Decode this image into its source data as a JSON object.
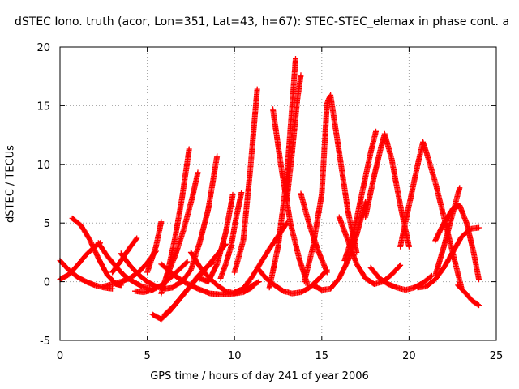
{
  "chart_data": {
    "type": "scatter",
    "title": "dSTEC Iono. truth (acor, Lon=351, Lat=43, h=67): STEC-STEC_elemax in phase cont. a",
    "xlabel": "GPS time / hours of day 241 of year 2006",
    "ylabel": "dSTEC  / TECUs",
    "xlim": [
      0,
      25
    ],
    "ylim": [
      -5,
      20
    ],
    "xticks": [
      "0",
      "5",
      "10",
      "15",
      "20",
      "25"
    ],
    "yticks": [
      "-5",
      "0",
      "5",
      "10",
      "15",
      "20"
    ],
    "grid": true,
    "marker": "+",
    "color": "#ff0000",
    "series": [
      {
        "x": [
          0.0,
          0.5,
          1.0,
          1.5,
          2.0,
          2.5,
          3.0
        ],
        "y": [
          1.8,
          1.0,
          0.4,
          0.0,
          -0.3,
          -0.5,
          -0.6
        ]
      },
      {
        "x": [
          0.0,
          0.5,
          1.0,
          1.5,
          2.0,
          2.3
        ],
        "y": [
          0.2,
          0.6,
          1.4,
          2.3,
          3.0,
          3.3
        ]
      },
      {
        "x": [
          0.7,
          1.2,
          1.7,
          2.2,
          2.7,
          3.2,
          3.5
        ],
        "y": [
          5.4,
          4.8,
          3.6,
          2.0,
          0.6,
          -0.2,
          -0.3
        ]
      },
      {
        "x": [
          2.2,
          2.7,
          3.2,
          3.7,
          4.2,
          4.7,
          5.2
        ],
        "y": [
          3.3,
          2.2,
          1.3,
          0.5,
          0.0,
          -0.4,
          -0.6
        ]
      },
      {
        "x": [
          2.5,
          3.0,
          3.5,
          4.0,
          4.5,
          5.0,
          5.5
        ],
        "y": [
          -0.4,
          -0.2,
          0.0,
          0.3,
          0.8,
          1.6,
          2.6
        ]
      },
      {
        "x": [
          3.0,
          3.5,
          4.0,
          4.4
        ],
        "y": [
          0.8,
          1.8,
          2.9,
          3.7
        ]
      },
      {
        "x": [
          3.5,
          4.0,
          4.5,
          5.0,
          5.5,
          6.0,
          6.5
        ],
        "y": [
          2.4,
          1.4,
          0.6,
          0.0,
          -0.4,
          -0.6,
          -0.5
        ]
      },
      {
        "x": [
          4.3,
          4.8,
          5.3,
          5.8,
          6.3,
          6.8,
          7.3
        ],
        "y": [
          -0.8,
          -0.9,
          -0.7,
          -0.3,
          0.3,
          1.0,
          1.7
        ]
      },
      {
        "x": [
          5.0,
          5.5,
          5.8
        ],
        "y": [
          0.8,
          3.0,
          5.1
        ]
      },
      {
        "x": [
          5.8,
          6.2,
          6.6,
          7.0,
          7.4
        ],
        "y": [
          -1.0,
          1.0,
          3.8,
          7.2,
          11.3
        ]
      },
      {
        "x": [
          6.1,
          6.6,
          7.1,
          7.6,
          7.9
        ],
        "y": [
          0.4,
          2.2,
          4.5,
          7.3,
          9.3
        ]
      },
      {
        "x": [
          6.5,
          7.0,
          7.5,
          8.0,
          8.5,
          9.0
        ],
        "y": [
          -0.4,
          0.0,
          1.0,
          3.3,
          6.2,
          10.7
        ]
      },
      {
        "x": [
          7.5,
          8.0,
          8.5,
          9.0,
          9.5,
          10.0,
          10.5,
          11.0
        ],
        "y": [
          2.5,
          1.3,
          0.4,
          -0.3,
          -0.8,
          -1.0,
          -0.9,
          -0.5
        ]
      },
      {
        "x": [
          5.3,
          5.8,
          6.3,
          6.8,
          7.3,
          7.8,
          8.3,
          8.8
        ],
        "y": [
          -2.8,
          -3.2,
          -2.5,
          -1.6,
          -0.7,
          0.3,
          1.1,
          1.7
        ]
      },
      {
        "x": [
          6.0,
          6.5,
          7.0,
          7.5,
          8.0,
          8.5,
          9.0,
          9.5
        ],
        "y": [
          -2.8,
          -2.1,
          -1.2,
          -0.3,
          0.5,
          1.4,
          2.3,
          3.2
        ]
      },
      {
        "x": [
          5.8,
          6.5,
          7.2,
          7.9,
          8.6,
          9.3,
          10.0,
          10.7,
          11.4
        ],
        "y": [
          1.5,
          0.6,
          -0.1,
          -0.6,
          -1.0,
          -1.1,
          -1.0,
          -0.6,
          0.0
        ]
      },
      {
        "x": [
          8.0,
          8.5,
          9.0,
          9.5,
          9.9
        ],
        "y": [
          0.3,
          0.0,
          1.5,
          4.2,
          7.4
        ]
      },
      {
        "x": [
          9.2,
          9.5,
          9.8,
          10.1,
          10.4
        ],
        "y": [
          0.3,
          1.5,
          3.0,
          5.5,
          7.6
        ]
      },
      {
        "x": [
          10.0,
          10.5,
          10.9,
          11.3
        ],
        "y": [
          0.8,
          3.5,
          9.5,
          16.4
        ]
      },
      {
        "x": [
          10.0,
          10.5,
          11.0,
          11.5,
          12.0,
          12.5,
          13.0
        ],
        "y": [
          -0.9,
          -0.6,
          0.4,
          1.6,
          2.8,
          3.9,
          5.0
        ]
      },
      {
        "x": [
          11.3,
          11.8,
          12.3,
          12.8,
          13.3,
          13.8,
          14.3,
          14.8,
          15.3
        ],
        "y": [
          1.2,
          0.3,
          -0.3,
          -0.8,
          -1.0,
          -0.9,
          -0.5,
          0.2,
          1.0
        ]
      },
      {
        "x": [
          12.0,
          12.5,
          13.0,
          13.5
        ],
        "y": [
          -0.5,
          3.0,
          9.0,
          19.0
        ]
      },
      {
        "x": [
          12.2,
          12.7,
          13.2,
          13.7,
          14.2
        ],
        "y": [
          14.7,
          9.5,
          5.0,
          2.0,
          -0.3
        ]
      },
      {
        "x": [
          13.0,
          13.3,
          13.6,
          13.8
        ],
        "y": [
          7.0,
          11.0,
          15.5,
          17.6
        ]
      },
      {
        "x": [
          13.8,
          14.3,
          14.8,
          15.3
        ],
        "y": [
          7.5,
          4.8,
          2.6,
          0.8
        ]
      },
      {
        "x": [
          14.0,
          14.5,
          15.0,
          15.3,
          15.5,
          16.0,
          16.5,
          17.0
        ],
        "y": [
          0.0,
          3.0,
          7.5,
          15.2,
          15.9,
          11.0,
          6.0,
          2.5
        ]
      },
      {
        "x": [
          14.5,
          15.0,
          15.5,
          16.0,
          16.5,
          17.0,
          17.5
        ],
        "y": [
          -0.3,
          -0.7,
          -0.6,
          0.3,
          1.8,
          4.0,
          6.8
        ]
      },
      {
        "x": [
          16.0,
          16.5,
          17.0,
          17.5,
          18.0,
          18.5,
          19.0,
          19.5
        ],
        "y": [
          5.5,
          3.5,
          1.5,
          0.3,
          -0.2,
          0.0,
          0.6,
          1.4
        ]
      },
      {
        "x": [
          16.3,
          16.8,
          17.3,
          17.8,
          18.1
        ],
        "y": [
          1.8,
          4.0,
          7.5,
          11.0,
          12.8
        ]
      },
      {
        "x": [
          17.5,
          18.0,
          18.4,
          18.6,
          19.0,
          19.5,
          20.0
        ],
        "y": [
          5.5,
          9.0,
          11.5,
          12.6,
          10.5,
          6.5,
          3.0
        ]
      },
      {
        "x": [
          17.8,
          18.3,
          18.8,
          19.3,
          19.8,
          20.3,
          20.8,
          21.3
        ],
        "y": [
          1.2,
          0.3,
          -0.2,
          -0.5,
          -0.7,
          -0.5,
          -0.1,
          0.5
        ]
      },
      {
        "x": [
          19.5,
          20.0,
          20.5,
          20.8,
          21.0,
          21.5,
          22.0,
          22.5,
          23.0
        ],
        "y": [
          3.0,
          6.5,
          10.0,
          11.9,
          11.0,
          8.5,
          5.5,
          2.5,
          -0.5
        ]
      },
      {
        "x": [
          21.5,
          22.0,
          22.5,
          22.9
        ],
        "y": [
          0.5,
          3.0,
          5.8,
          8.0
        ]
      },
      {
        "x": [
          21.5,
          22.0,
          22.5,
          22.9,
          23.3,
          23.7,
          24.0
        ],
        "y": [
          3.5,
          5.0,
          6.2,
          6.5,
          5.0,
          2.5,
          0.2
        ]
      },
      {
        "x": [
          22.8,
          23.2,
          23.6,
          24.0
        ],
        "y": [
          -0.3,
          -0.9,
          -1.6,
          -2.0
        ]
      },
      {
        "x": [
          20.5,
          21.0,
          21.5,
          22.0,
          22.5,
          23.0,
          23.5,
          24.0
        ],
        "y": [
          -0.5,
          -0.4,
          0.2,
          1.2,
          2.5,
          3.8,
          4.5,
          4.6
        ]
      }
    ]
  }
}
